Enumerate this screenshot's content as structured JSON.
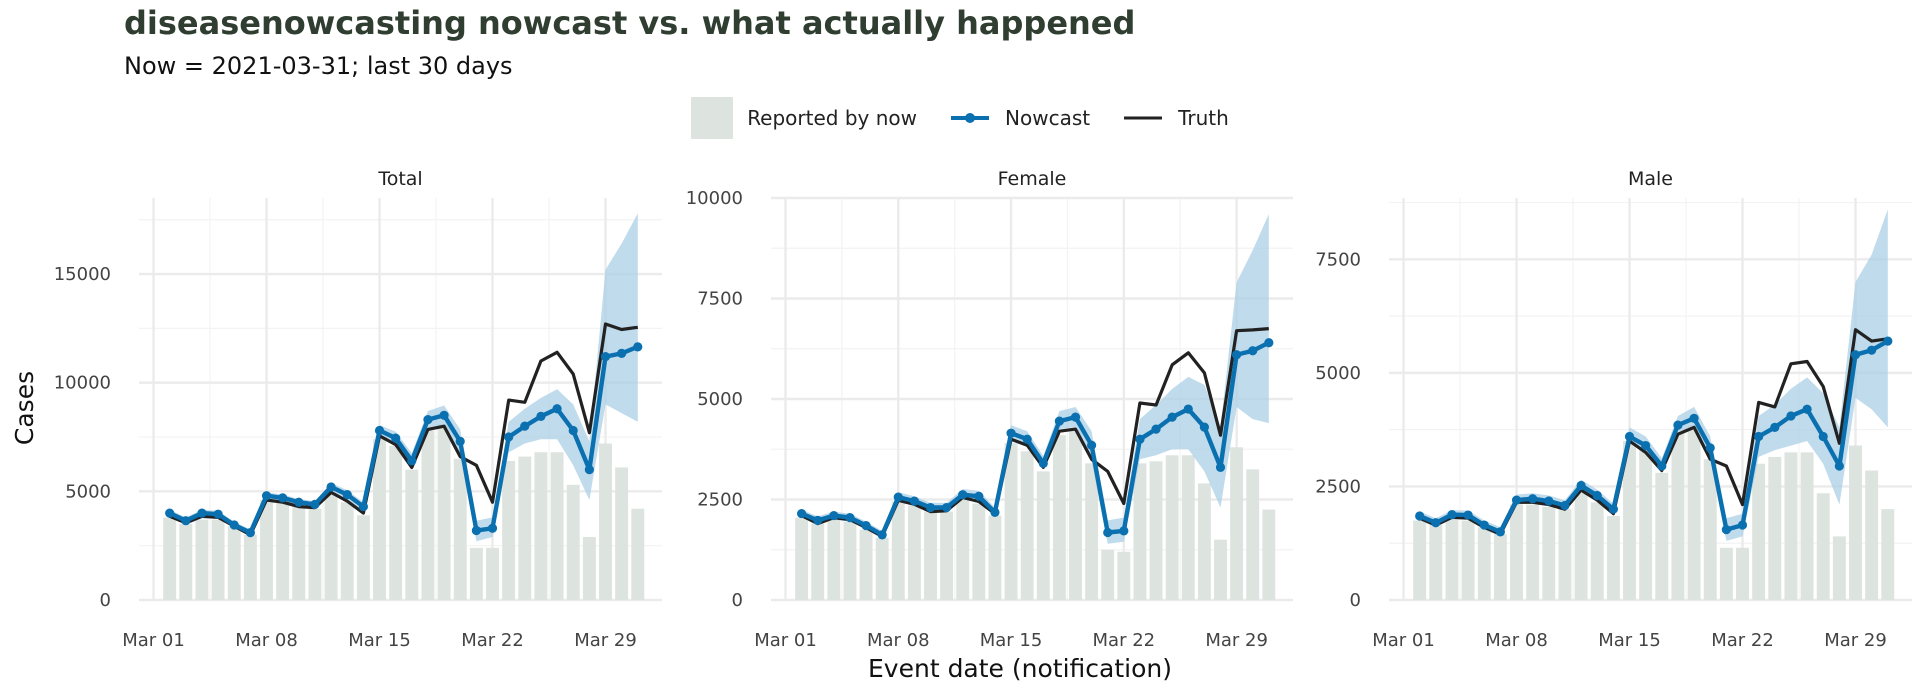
{
  "title": "diseasenowcasting nowcast vs. what actually happened",
  "subtitle": "Now = 2021-03-31; last 30 days",
  "legend": {
    "reported": "Reported by now",
    "nowcast": "Nowcast",
    "truth": "Truth"
  },
  "colors": {
    "reported": "#dde3df",
    "nowcast": "#0a70b0",
    "band": "#a9cfe6",
    "truth": "#222222",
    "grid": "#ebebeb",
    "title": "#2f3e30"
  },
  "chart_data": [
    {
      "type": "bar",
      "panel": "Total",
      "xlabel": "Event date (notification)",
      "ylabel": "Cases",
      "ylim": [
        0,
        18500
      ],
      "xticks": [
        "Mar 01",
        "Mar 08",
        "Mar 15",
        "Mar 22",
        "Mar 29"
      ],
      "yticks": [
        0,
        5000,
        10000,
        15000
      ],
      "grid": true,
      "x": [
        "2021-03-02",
        "2021-03-03",
        "2021-03-04",
        "2021-03-05",
        "2021-03-06",
        "2021-03-07",
        "2021-03-08",
        "2021-03-09",
        "2021-03-10",
        "2021-03-11",
        "2021-03-12",
        "2021-03-13",
        "2021-03-14",
        "2021-03-15",
        "2021-03-16",
        "2021-03-17",
        "2021-03-18",
        "2021-03-19",
        "2021-03-20",
        "2021-03-21",
        "2021-03-22",
        "2021-03-23",
        "2021-03-24",
        "2021-03-25",
        "2021-03-26",
        "2021-03-27",
        "2021-03-28",
        "2021-03-29",
        "2021-03-30",
        "2021-03-31"
      ],
      "series": [
        {
          "name": "Reported by now",
          "values": [
            3800,
            3500,
            3700,
            3700,
            3400,
            3000,
            4600,
            4500,
            4300,
            4200,
            4900,
            4500,
            3900,
            7400,
            7100,
            6000,
            7800,
            8100,
            6500,
            2400,
            2400,
            6400,
            6600,
            6800,
            6800,
            5300,
            2900,
            7200,
            6100,
            4200
          ]
        },
        {
          "name": "Nowcast",
          "values": [
            4000,
            3650,
            4000,
            3950,
            3450,
            3100,
            4800,
            4700,
            4500,
            4400,
            5200,
            4850,
            4300,
            7800,
            7450,
            6400,
            8300,
            8500,
            7300,
            3200,
            3300,
            7500,
            8000,
            8450,
            8800,
            7800,
            6000,
            11200,
            11350,
            11650
          ]
        },
        {
          "name": "Truth",
          "values": [
            3850,
            3550,
            3850,
            3800,
            3400,
            3000,
            4600,
            4500,
            4300,
            4250,
            4950,
            4550,
            4000,
            7550,
            7150,
            6100,
            7850,
            8000,
            6600,
            6200,
            4500,
            9200,
            9100,
            11000,
            11400,
            10400,
            7700,
            12700,
            12450,
            12550
          ]
        },
        {
          "name": "band_lower",
          "values": [
            3800,
            3450,
            3750,
            3750,
            3300,
            2950,
            4600,
            4500,
            4300,
            4200,
            4950,
            4600,
            4050,
            7500,
            7100,
            6050,
            7900,
            8050,
            6700,
            2700,
            2900,
            6800,
            7200,
            7400,
            7400,
            6200,
            4600,
            9000,
            8600,
            8200
          ]
        },
        {
          "name": "band_upper",
          "values": [
            4150,
            3800,
            4150,
            4100,
            3600,
            3250,
            4950,
            4850,
            4650,
            4550,
            5400,
            5050,
            4500,
            8050,
            7750,
            6750,
            8700,
            8950,
            7850,
            3650,
            3800,
            8200,
            8800,
            9300,
            9700,
            9000,
            7300,
            15200,
            16400,
            17800
          ]
        }
      ]
    },
    {
      "type": "bar",
      "panel": "Female",
      "xlabel": "Event date (notification)",
      "ylabel": "Cases",
      "ylim": [
        0,
        10000
      ],
      "xticks": [
        "Mar 01",
        "Mar 08",
        "Mar 15",
        "Mar 22",
        "Mar 29"
      ],
      "yticks": [
        0,
        2500,
        5000,
        7500,
        10000
      ],
      "grid": true,
      "x": [
        "2021-03-02",
        "2021-03-03",
        "2021-03-04",
        "2021-03-05",
        "2021-03-06",
        "2021-03-07",
        "2021-03-08",
        "2021-03-09",
        "2021-03-10",
        "2021-03-11",
        "2021-03-12",
        "2021-03-13",
        "2021-03-14",
        "2021-03-15",
        "2021-03-16",
        "2021-03-17",
        "2021-03-18",
        "2021-03-19",
        "2021-03-20",
        "2021-03-21",
        "2021-03-22",
        "2021-03-23",
        "2021-03-24",
        "2021-03-25",
        "2021-03-26",
        "2021-03-27",
        "2021-03-28",
        "2021-03-29",
        "2021-03-30",
        "2021-03-31"
      ],
      "series": [
        {
          "name": "Reported by now",
          "values": [
            2050,
            1900,
            2000,
            1950,
            1750,
            1550,
            2450,
            2350,
            2200,
            2200,
            2500,
            2400,
            2100,
            3900,
            3700,
            3200,
            4100,
            4250,
            3400,
            1250,
            1200,
            3400,
            3450,
            3600,
            3600,
            2900,
            1500,
            3800,
            3250,
            2250
          ]
        },
        {
          "name": "Nowcast",
          "values": [
            2150,
            1980,
            2100,
            2050,
            1850,
            1620,
            2560,
            2460,
            2300,
            2300,
            2620,
            2580,
            2180,
            4150,
            4000,
            3400,
            4450,
            4550,
            3850,
            1680,
            1720,
            4000,
            4250,
            4550,
            4750,
            4300,
            3300,
            6100,
            6200,
            6400
          ]
        },
        {
          "name": "Truth",
          "values": [
            2100,
            1900,
            2050,
            2000,
            1800,
            1580,
            2480,
            2380,
            2200,
            2220,
            2550,
            2450,
            2150,
            4000,
            3850,
            3300,
            4200,
            4250,
            3500,
            3200,
            2400,
            4900,
            4850,
            5850,
            6150,
            5650,
            4100,
            6700,
            6720,
            6750
          ]
        },
        {
          "name": "band_lower",
          "values": [
            2050,
            1880,
            2000,
            1950,
            1760,
            1540,
            2450,
            2350,
            2200,
            2200,
            2500,
            2450,
            2100,
            3950,
            3800,
            3250,
            4250,
            4300,
            3450,
            1400,
            1450,
            3500,
            3600,
            3750,
            3750,
            3200,
            2300,
            4800,
            4500,
            4400
          ]
        },
        {
          "name": "band_upper",
          "values": [
            2250,
            2080,
            2200,
            2150,
            1950,
            1720,
            2680,
            2580,
            2420,
            2420,
            2760,
            2720,
            2300,
            4350,
            4200,
            3580,
            4700,
            4800,
            4200,
            1980,
            2050,
            4500,
            4850,
            5250,
            5550,
            5350,
            4300,
            7900,
            8700,
            9600
          ]
        }
      ]
    },
    {
      "type": "bar",
      "panel": "Male",
      "xlabel": "Event date (notification)",
      "ylabel": "Cases",
      "ylim": [
        0,
        8850
      ],
      "xticks": [
        "Mar 01",
        "Mar 08",
        "Mar 15",
        "Mar 22",
        "Mar 29"
      ],
      "yticks": [
        0,
        2500,
        5000,
        7500
      ],
      "grid": true,
      "x": [
        "2021-03-02",
        "2021-03-03",
        "2021-03-04",
        "2021-03-05",
        "2021-03-06",
        "2021-03-07",
        "2021-03-08",
        "2021-03-09",
        "2021-03-10",
        "2021-03-11",
        "2021-03-12",
        "2021-03-13",
        "2021-03-14",
        "2021-03-15",
        "2021-03-16",
        "2021-03-17",
        "2021-03-18",
        "2021-03-19",
        "2021-03-20",
        "2021-03-21",
        "2021-03-22",
        "2021-03-23",
        "2021-03-24",
        "2021-03-25",
        "2021-03-26",
        "2021-03-27",
        "2021-03-28",
        "2021-03-29",
        "2021-03-30",
        "2021-03-31"
      ],
      "series": [
        {
          "name": "Reported by now",
          "values": [
            1750,
            1650,
            1800,
            1750,
            1600,
            1450,
            2100,
            2100,
            2050,
            2000,
            2350,
            2150,
            1850,
            3500,
            3350,
            2800,
            3700,
            3850,
            3100,
            1150,
            1150,
            3000,
            3150,
            3250,
            3250,
            2350,
            1400,
            3400,
            2850,
            2000
          ]
        },
        {
          "name": "Nowcast",
          "values": [
            1850,
            1700,
            1880,
            1870,
            1650,
            1500,
            2200,
            2230,
            2180,
            2080,
            2520,
            2300,
            2000,
            3600,
            3400,
            2950,
            3850,
            4000,
            3350,
            1550,
            1650,
            3600,
            3800,
            4050,
            4200,
            3600,
            2950,
            5400,
            5500,
            5700
          ]
        },
        {
          "name": "Truth",
          "values": [
            1800,
            1650,
            1820,
            1800,
            1600,
            1450,
            2150,
            2150,
            2100,
            2000,
            2420,
            2200,
            1900,
            3500,
            3250,
            2850,
            3650,
            3800,
            3100,
            2950,
            2100,
            4350,
            4250,
            5200,
            5250,
            4700,
            3450,
            5950,
            5700,
            5750
          ]
        },
        {
          "name": "band_lower",
          "values": [
            1750,
            1600,
            1780,
            1770,
            1550,
            1400,
            2100,
            2130,
            2080,
            1980,
            2400,
            2200,
            1900,
            3450,
            3250,
            2800,
            3700,
            3800,
            3100,
            1300,
            1400,
            3150,
            3300,
            3400,
            3500,
            3000,
            2100,
            4450,
            4200,
            3800
          ]
        },
        {
          "name": "band_upper",
          "values": [
            1950,
            1800,
            1980,
            1970,
            1750,
            1600,
            2320,
            2350,
            2300,
            2200,
            2650,
            2430,
            2120,
            3800,
            3600,
            3120,
            4050,
            4250,
            3600,
            1800,
            1900,
            4050,
            4300,
            4650,
            4900,
            4550,
            3800,
            7000,
            7600,
            8600
          ]
        }
      ]
    }
  ]
}
